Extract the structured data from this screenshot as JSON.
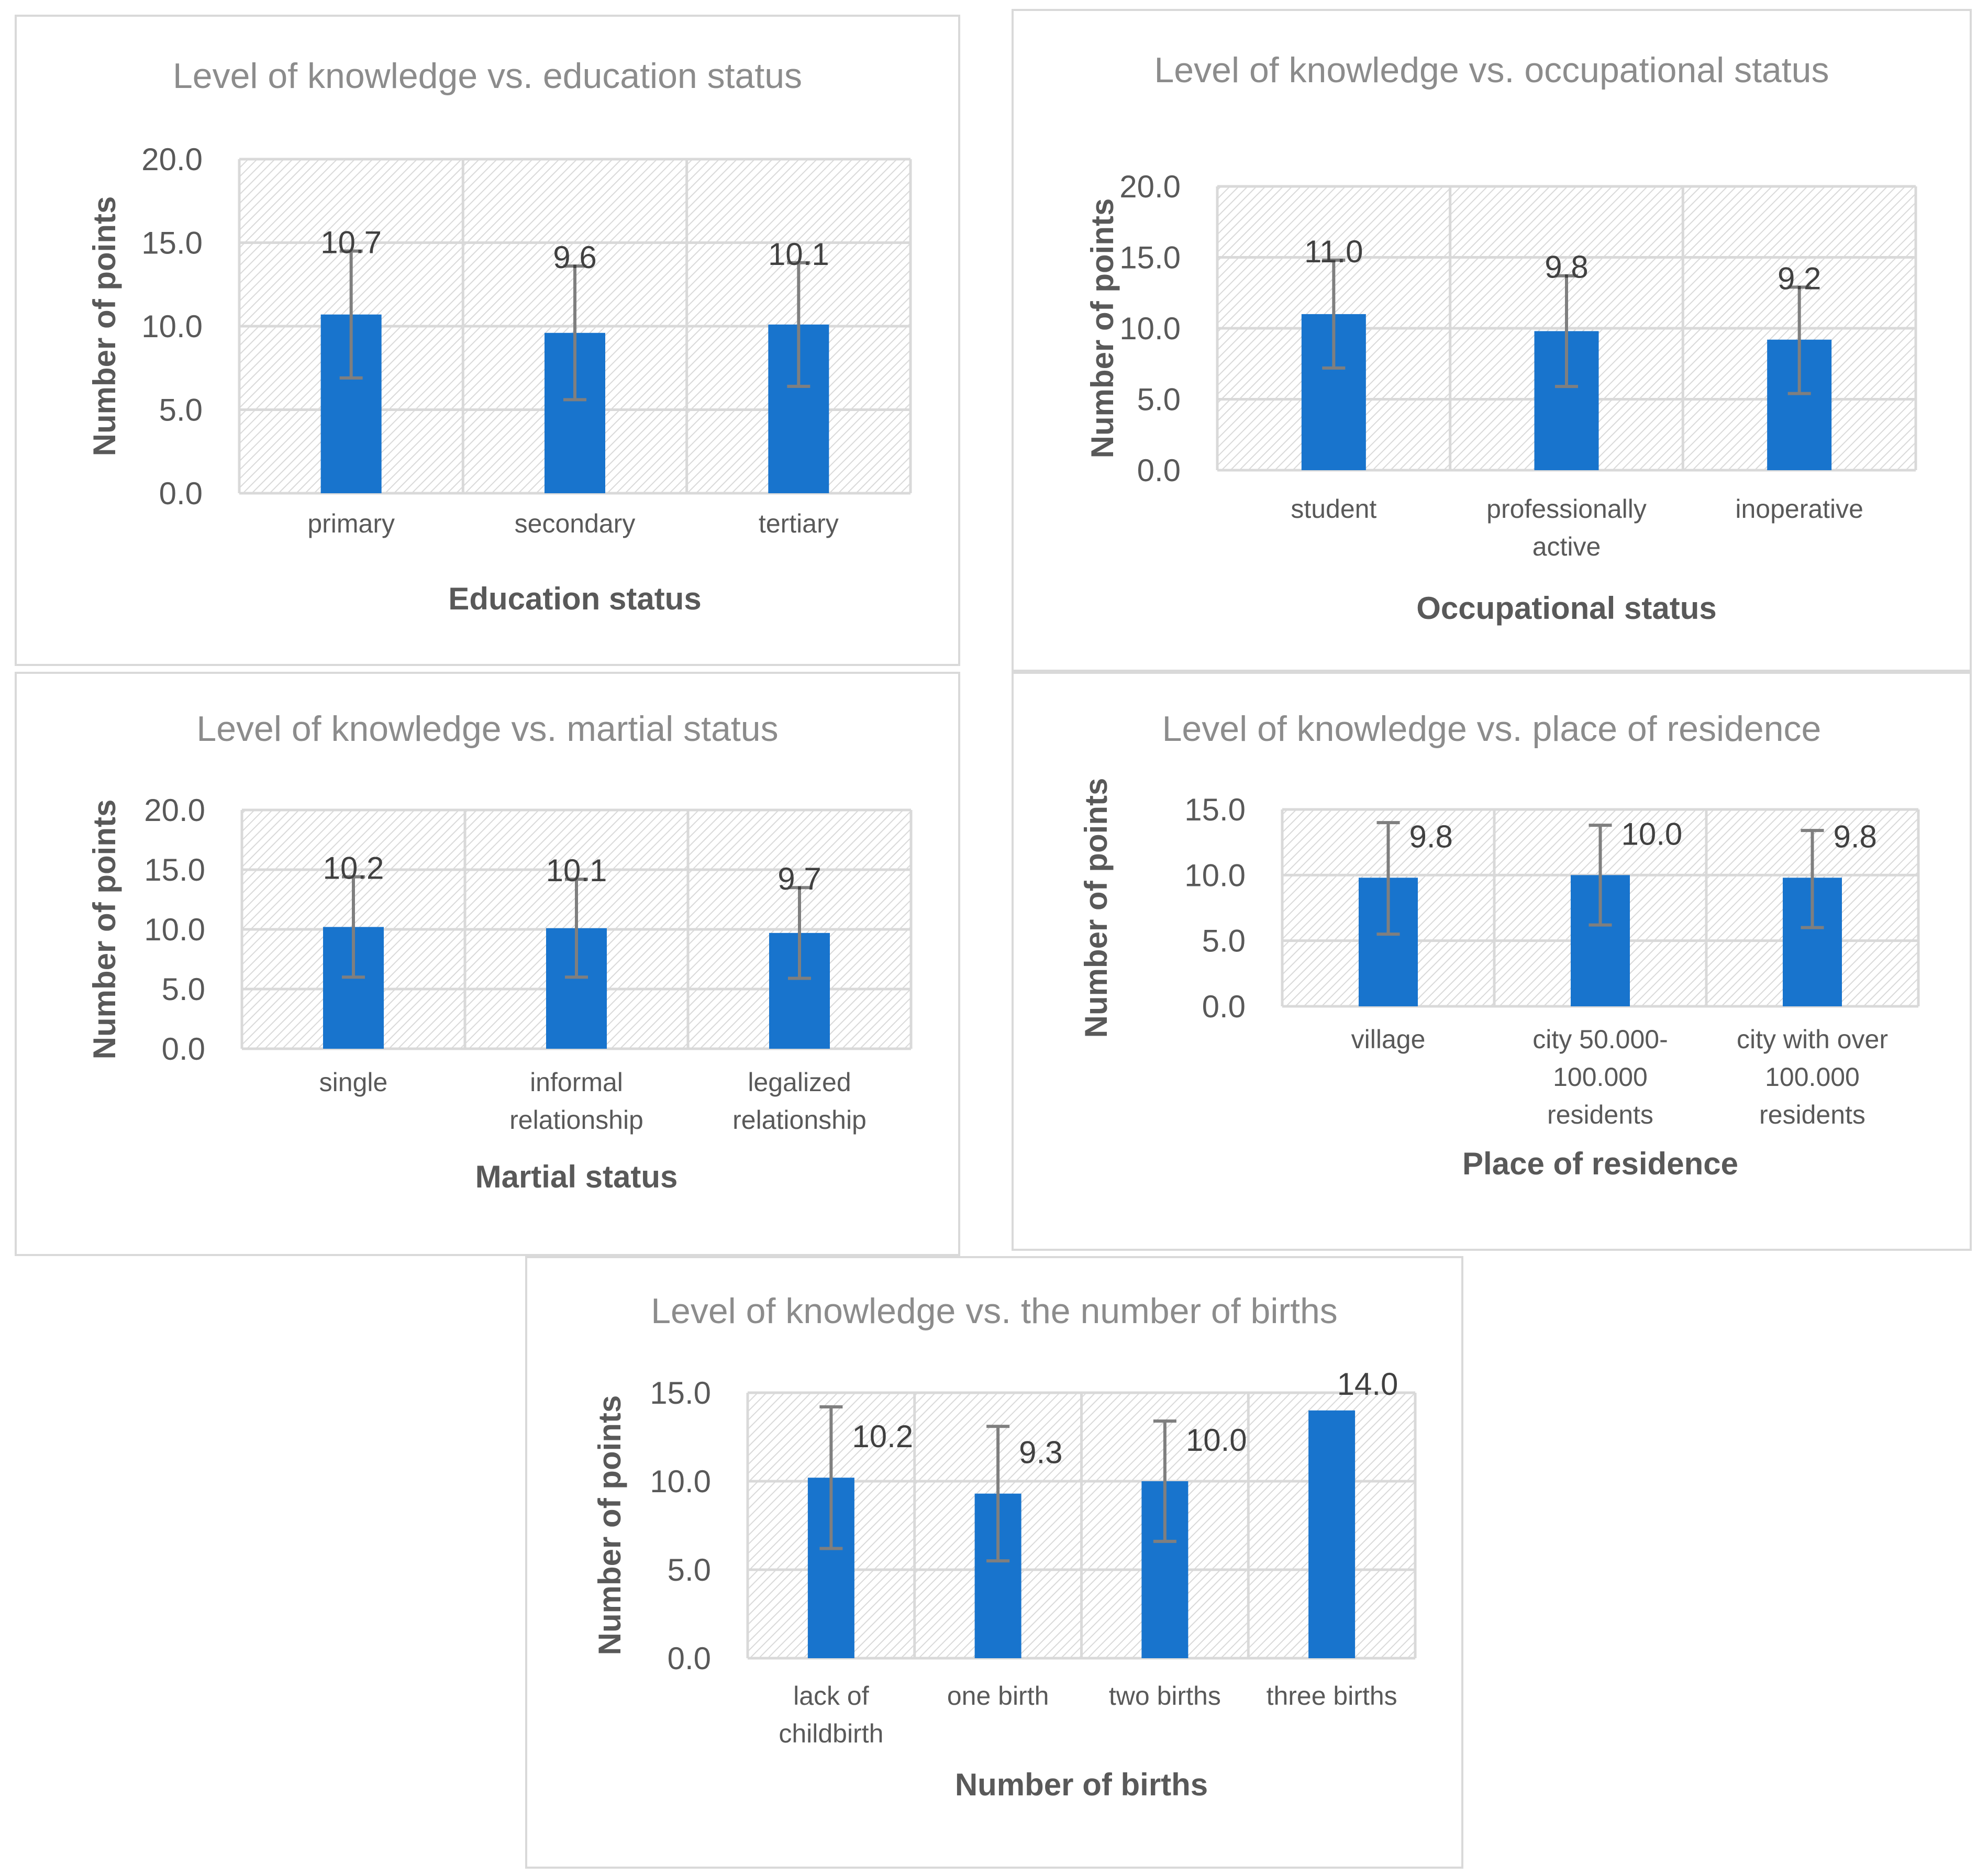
{
  "colors": {
    "bar": "#1874cd",
    "error_bar": "#7f7f7f",
    "grid": "#d9d9d9",
    "title": "#8c8c8c",
    "text": "#595959"
  },
  "chart_data": [
    {
      "type": "bar",
      "title": "Level of knowledge vs. education status",
      "xlabel": "Education status",
      "ylabel": "Number of points",
      "ylim": [
        0,
        20
      ],
      "yticks": [
        "0.0",
        "5.0",
        "10.0",
        "15.0",
        "20.0"
      ],
      "categories": [
        [
          "primary"
        ],
        [
          "secondary"
        ],
        [
          "tertiary"
        ]
      ],
      "values": [
        10.7,
        9.6,
        10.1
      ],
      "labels": [
        "10.7",
        "9.6",
        "10.1"
      ],
      "error_low": [
        6.9,
        5.6,
        6.4
      ],
      "error_high": [
        14.5,
        13.6,
        13.8
      ],
      "label_pos": "above"
    },
    {
      "type": "bar",
      "title": "Level of knowledge vs. occupational status",
      "xlabel": "Occupational status",
      "ylabel": "Number of points",
      "ylim": [
        0,
        20
      ],
      "yticks": [
        "0.0",
        "5.0",
        "10.0",
        "15.0",
        "20.0"
      ],
      "categories": [
        [
          "student"
        ],
        [
          "professionally",
          "active"
        ],
        [
          "inoperative"
        ]
      ],
      "values": [
        11.0,
        9.8,
        9.2
      ],
      "labels": [
        "11.0",
        "9.8",
        "9.2"
      ],
      "error_low": [
        7.2,
        5.9,
        5.4
      ],
      "error_high": [
        14.8,
        13.7,
        12.9
      ],
      "label_pos": "above"
    },
    {
      "type": "bar",
      "title": "Level of knowledge vs. martial status",
      "xlabel": "Martial status",
      "ylabel": "Number of points",
      "ylim": [
        0,
        20
      ],
      "yticks": [
        "0.0",
        "5.0",
        "10.0",
        "15.0",
        "20.0"
      ],
      "categories": [
        [
          "single"
        ],
        [
          "informal",
          "relationship"
        ],
        [
          "legalized",
          "relationship"
        ]
      ],
      "values": [
        10.2,
        10.1,
        9.7
      ],
      "labels": [
        "10.2",
        "10.1",
        "9.7"
      ],
      "error_low": [
        6.0,
        6.0,
        5.9
      ],
      "error_high": [
        14.4,
        14.2,
        13.5
      ],
      "label_pos": "above"
    },
    {
      "type": "bar",
      "title": "Level of knowledge vs. place of residence",
      "xlabel": "Place of residence",
      "ylabel": "Number of points",
      "ylim": [
        0,
        15
      ],
      "yticks": [
        "0.0",
        "5.0",
        "10.0",
        "15.0"
      ],
      "categories": [
        [
          "village"
        ],
        [
          "city 50.000-",
          "100.000",
          "residents"
        ],
        [
          "city with over",
          "100.000",
          "residents"
        ]
      ],
      "values": [
        9.8,
        10.0,
        9.8
      ],
      "labels": [
        "9.8",
        "10.0",
        "9.8"
      ],
      "error_low": [
        5.5,
        6.2,
        6.0
      ],
      "error_high": [
        14.0,
        13.8,
        13.4
      ],
      "label_pos": "right"
    },
    {
      "type": "bar",
      "title": "Level of knowledge vs. the number of births",
      "xlabel": "Number of births",
      "ylabel": "Number of points",
      "ylim": [
        0,
        15
      ],
      "yticks": [
        "0.0",
        "5.0",
        "10.0",
        "15.0"
      ],
      "categories": [
        [
          "lack of",
          "childbirth"
        ],
        [
          "one birth"
        ],
        [
          "two births"
        ],
        [
          "three births"
        ]
      ],
      "values": [
        10.2,
        9.3,
        10.0,
        14.0
      ],
      "labels": [
        "10.2",
        "9.3",
        "10.0",
        "14.0"
      ],
      "error_low": [
        6.2,
        5.5,
        6.6,
        null
      ],
      "error_high": [
        14.2,
        13.1,
        13.4,
        null
      ],
      "label_pos": "right"
    }
  ]
}
